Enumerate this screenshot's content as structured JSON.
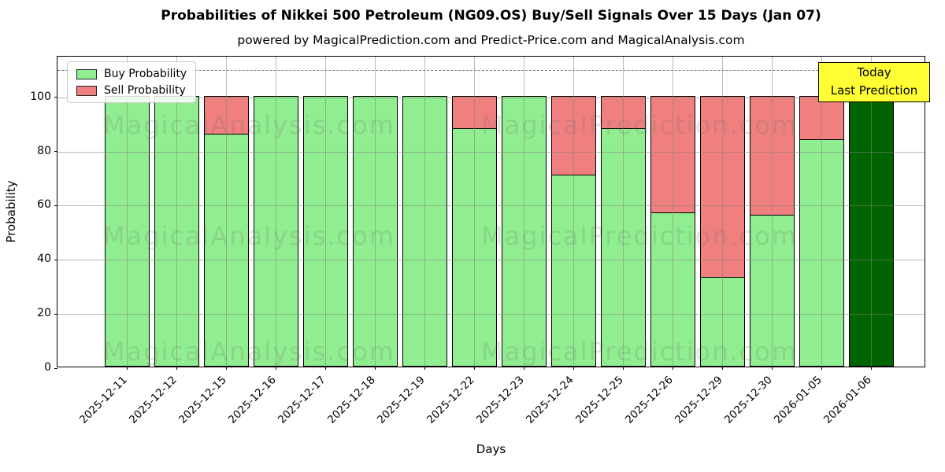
{
  "chart_data": {
    "type": "bar",
    "stacked": true,
    "title": "Probabilities of Nikkei 500 Petroleum (NG09.OS) Buy/Sell Signals Over 15 Days (Jan 07)",
    "subtitle": "powered by MagicalPrediction.com and Predict-Price.com and MagicalAnalysis.com",
    "xlabel": "Days",
    "ylabel": "Probability",
    "ylim": [
      0,
      115
    ],
    "yticks": [
      0,
      20,
      40,
      60,
      80,
      100
    ],
    "dashed_line_y": 110,
    "grid": true,
    "legend_position": "upper left",
    "categories": [
      "2025-12-11",
      "2025-12-12",
      "2025-12-15",
      "2025-12-16",
      "2025-12-17",
      "2025-12-18",
      "2025-12-19",
      "2025-12-22",
      "2025-12-23",
      "2025-12-24",
      "2025-12-25",
      "2025-12-26",
      "2025-12-29",
      "2025-12-30",
      "2026-01-05",
      "2026-01-06"
    ],
    "series": [
      {
        "name": "Buy Probability",
        "color": "#90EE90",
        "values": [
          100,
          100,
          86,
          100,
          100,
          100,
          100,
          88,
          100,
          71,
          88,
          57,
          33,
          56,
          84,
          100
        ]
      },
      {
        "name": "Sell Probability",
        "color": "#F08080",
        "values": [
          0,
          0,
          14,
          0,
          0,
          0,
          0,
          12,
          0,
          29,
          12,
          43,
          67,
          44,
          16,
          0
        ]
      }
    ],
    "today_index": 15,
    "today_color": "#006400",
    "edge_color": "#000000",
    "annotation": {
      "line1": "Today",
      "line2": "Last Prediction",
      "bg_color": "#ffff33",
      "border_color": "#000000"
    },
    "watermarks": {
      "left": "MagicalAnalysis.com",
      "right": "MagicalPrediction.com"
    }
  }
}
